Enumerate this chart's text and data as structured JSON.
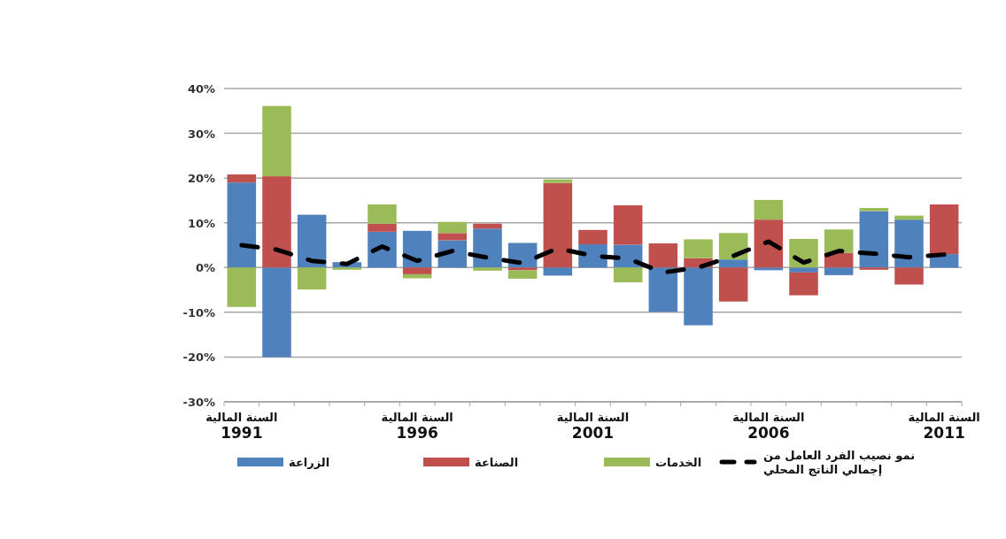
{
  "chart_data": {
    "type": "bar",
    "stacked": true,
    "categories": [
      "السنة المالية\n1991",
      null,
      null,
      null,
      null,
      "السنة المالية\n1996",
      null,
      null,
      null,
      null,
      "السنة المالية\n2001",
      null,
      null,
      null,
      null,
      "السنة المالية\n2006",
      null,
      null,
      null,
      null,
      "السنة المالية\n2011"
    ],
    "ylim": [
      -30,
      40
    ],
    "yticks": [
      {
        "value": -30,
        "label": "-30%"
      },
      {
        "value": -20,
        "label": "-20%"
      },
      {
        "value": -10,
        "label": "-10%"
      },
      {
        "value": 0,
        "label": "0%"
      },
      {
        "value": 10,
        "label": "10%"
      },
      {
        "value": 20,
        "label": "20%"
      },
      {
        "value": 30,
        "label": "30%"
      },
      {
        "value": 40,
        "label": "40%"
      }
    ],
    "grid": "y",
    "legend": "bottom",
    "series": [
      {
        "name": "الزراعة",
        "color": "#4f81bd",
        "values": [
          19,
          -20,
          11.8,
          1.2,
          8,
          8.2,
          6.1,
          8.7,
          5.5,
          -1.8,
          5.2,
          5.1,
          -9.9,
          -12.9,
          1.8,
          -0.6,
          -1.1,
          -1.7,
          12.6,
          10.7,
          3
        ]
      },
      {
        "name": "الصناعة",
        "color": "#c0504d",
        "values": [
          1.8,
          20.4,
          0,
          0,
          1.8,
          -1.5,
          1.6,
          1.1,
          -0.6,
          18.9,
          3.2,
          8.8,
          5.4,
          2.1,
          -7.6,
          10.7,
          -5.1,
          3.3,
          -0.5,
          -3.8,
          11.1
        ]
      },
      {
        "name": "الخدمات",
        "color": "#9bbb59",
        "values": [
          -8.8,
          15.7,
          -4.9,
          -0.5,
          4.3,
          -0.9,
          2.5,
          -0.7,
          -1.9,
          0.8,
          0,
          -3.3,
          0,
          4.2,
          5.9,
          4.4,
          6.4,
          5.2,
          0.7,
          0.9,
          0
        ]
      },
      {
        "name": "نمو نصيب الفرد العامل من إجمالي الناتج المحلي",
        "type": "line",
        "color": "#000000",
        "line_style": "dashed",
        "values": [
          5,
          4,
          1.5,
          0.8,
          4.7,
          1.5,
          3.7,
          2.2,
          1,
          4.3,
          2.6,
          2,
          -1.1,
          0,
          2.6,
          5.8,
          1.1,
          3.7,
          3.1,
          2.3,
          2.9
        ]
      }
    ]
  }
}
